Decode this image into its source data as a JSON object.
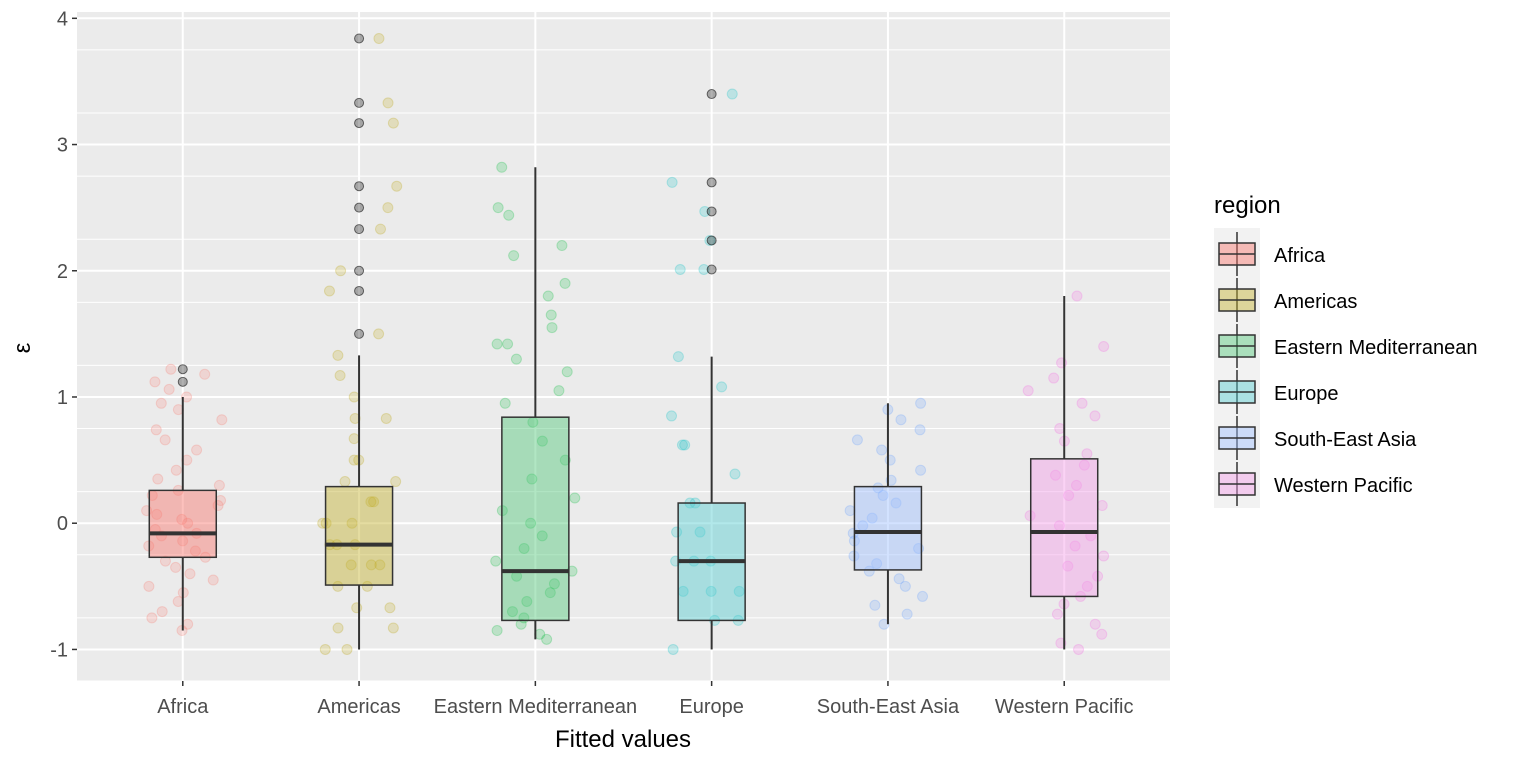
{
  "chart_data": {
    "type": "box",
    "xlabel": "Fitted values",
    "ylabel": "ε",
    "ylim": [
      -1.25,
      4.05
    ],
    "yticks": [
      -1,
      0,
      1,
      2,
      3,
      4
    ],
    "ytick_labels": [
      "-1",
      "0",
      "1",
      "2",
      "3",
      "4"
    ],
    "grid": true,
    "legend": {
      "title": "region",
      "placement": "right"
    },
    "categories": [
      "Africa",
      "Americas",
      "Eastern Mediterranean",
      "Europe",
      "South-East Asia",
      "Western Pacific"
    ],
    "series": [
      {
        "name": "Africa",
        "color": "#F8766D",
        "fill": "#F8766D",
        "q1": -0.27,
        "median": -0.08,
        "q3": 0.26,
        "whisker_low": -0.85,
        "whisker_high": 1.0,
        "outliers": [
          1.12,
          1.22
        ],
        "points": [
          -0.85,
          -0.8,
          -0.75,
          -0.7,
          -0.62,
          -0.55,
          -0.5,
          -0.45,
          -0.4,
          -0.35,
          -0.3,
          -0.27,
          -0.22,
          -0.18,
          -0.14,
          -0.1,
          -0.08,
          -0.05,
          0.0,
          0.03,
          0.07,
          0.1,
          0.14,
          0.18,
          0.22,
          0.26,
          0.3,
          0.35,
          0.42,
          0.5,
          0.58,
          0.66,
          0.74,
          0.82,
          0.9,
          0.95,
          1.0,
          1.06,
          1.12,
          1.18,
          1.22
        ]
      },
      {
        "name": "Americas",
        "color": "#B79F00",
        "fill": "#C4B12E",
        "q1": -0.49,
        "median": -0.17,
        "q3": 0.29,
        "whisker_low": -1.0,
        "whisker_high": 1.33,
        "outliers": [
          1.5,
          1.84,
          2.0,
          2.33,
          2.5,
          2.67,
          3.17,
          3.33,
          3.84
        ],
        "points": [
          -1.0,
          -1.0,
          -0.83,
          -0.83,
          -0.67,
          -0.67,
          -0.5,
          -0.5,
          -0.33,
          -0.33,
          -0.33,
          -0.17,
          -0.17,
          -0.17,
          0.0,
          0.0,
          0.0,
          0.17,
          0.17,
          0.33,
          0.33,
          0.5,
          0.5,
          0.67,
          0.83,
          0.83,
          1.0,
          1.17,
          1.33,
          1.5,
          1.84,
          2.0,
          2.33,
          2.5,
          2.67,
          3.17,
          3.33,
          3.84
        ]
      },
      {
        "name": "Eastern Mediterranean",
        "color": "#00BA38",
        "fill": "#53C77A",
        "q1": -0.77,
        "median": -0.38,
        "q3": 0.84,
        "whisker_low": -0.92,
        "whisker_high": 2.82,
        "outliers": [],
        "points": [
          -0.92,
          -0.88,
          -0.85,
          -0.8,
          -0.75,
          -0.7,
          -0.62,
          -0.55,
          -0.48,
          -0.42,
          -0.38,
          -0.3,
          -0.2,
          -0.1,
          0.0,
          0.1,
          0.2,
          0.35,
          0.5,
          0.65,
          0.8,
          0.95,
          1.05,
          1.2,
          1.3,
          1.42,
          1.42,
          1.55,
          1.65,
          1.8,
          1.9,
          2.12,
          2.2,
          2.44,
          2.5,
          2.82
        ]
      },
      {
        "name": "Europe",
        "color": "#00BFC4",
        "fill": "#55CDD1",
        "q1": -0.77,
        "median": -0.3,
        "q3": 0.16,
        "whisker_low": -1.0,
        "whisker_high": 1.32,
        "outliers": [
          2.01,
          2.24,
          2.47,
          2.7,
          3.4
        ],
        "points": [
          -1.0,
          -0.77,
          -0.77,
          -0.54,
          -0.54,
          -0.54,
          -0.3,
          -0.3,
          -0.3,
          -0.07,
          -0.07,
          0.16,
          0.16,
          0.39,
          0.62,
          0.62,
          0.85,
          1.08,
          1.32,
          2.01,
          2.01,
          2.24,
          2.47,
          2.7,
          3.4
        ]
      },
      {
        "name": "South-East Asia",
        "color": "#619CFF",
        "fill": "#9DBFFF",
        "q1": -0.37,
        "median": -0.07,
        "q3": 0.29,
        "whisker_low": -0.8,
        "whisker_high": 0.95,
        "outliers": [],
        "points": [
          -0.8,
          -0.72,
          -0.65,
          -0.58,
          -0.5,
          -0.44,
          -0.38,
          -0.32,
          -0.26,
          -0.2,
          -0.14,
          -0.08,
          -0.02,
          0.04,
          0.1,
          0.16,
          0.22,
          0.28,
          0.34,
          0.42,
          0.5,
          0.58,
          0.66,
          0.74,
          0.82,
          0.9,
          0.95
        ]
      },
      {
        "name": "Western Pacific",
        "color": "#F564E3",
        "fill": "#F49EE8",
        "q1": -0.58,
        "median": -0.07,
        "q3": 0.51,
        "whisker_low": -1.0,
        "whisker_high": 1.8,
        "outliers": [],
        "points": [
          -1.0,
          -0.95,
          -0.88,
          -0.8,
          -0.72,
          -0.64,
          -0.58,
          -0.5,
          -0.42,
          -0.34,
          -0.26,
          -0.18,
          -0.1,
          -0.02,
          0.06,
          0.14,
          0.22,
          0.3,
          0.38,
          0.46,
          0.55,
          0.65,
          0.75,
          0.85,
          0.95,
          1.05,
          1.15,
          1.27,
          1.4,
          1.8
        ]
      }
    ]
  }
}
